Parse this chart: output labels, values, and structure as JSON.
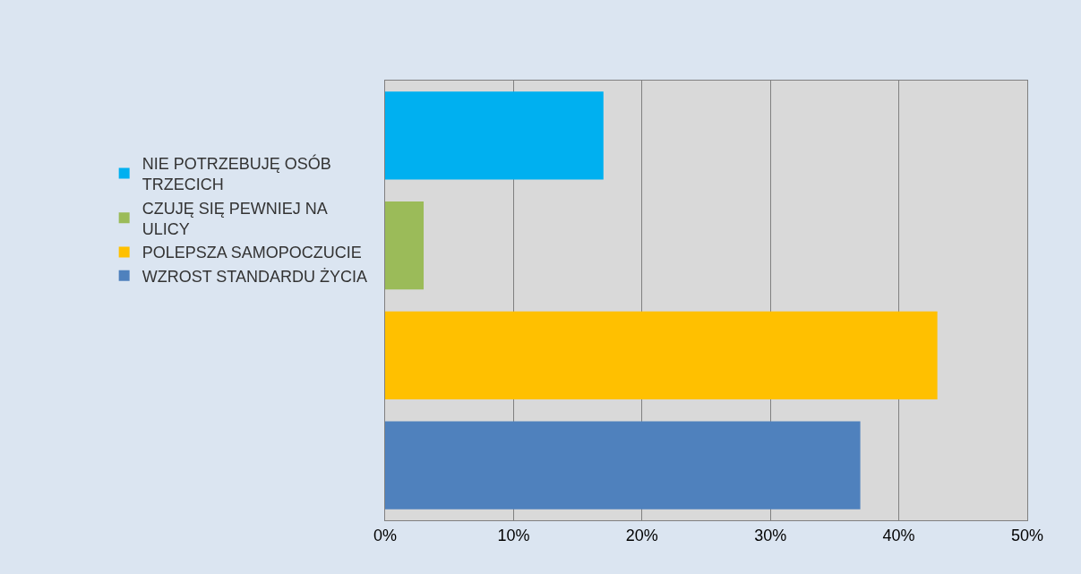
{
  "chart_data": {
    "type": "bar",
    "orientation": "horizontal",
    "categories": [
      null,
      null,
      null,
      null
    ],
    "series": [
      {
        "name": "NIE POTRZEBUJĘ OSÓB\nTRZECICH",
        "color": "#00b0f0",
        "values": [
          17,
          null,
          null,
          null
        ]
      },
      {
        "name": "CZUJĘ SIĘ PEWNIEJ NA\nULICY",
        "color": "#9bbb59",
        "values": [
          null,
          3,
          null,
          null
        ]
      },
      {
        "name": "POLEPSZA SAMOPOCZUCIE",
        "color": "#ffc000",
        "values": [
          null,
          null,
          43,
          null
        ]
      },
      {
        "name": "WZROST STANDARDU ŻYCIA",
        "color": "#4f81bd",
        "values": [
          null,
          null,
          null,
          37
        ]
      }
    ],
    "xlim": [
      0,
      50
    ],
    "xticks": [
      {
        "value": 0,
        "label": "0%"
      },
      {
        "value": 10,
        "label": "10%"
      },
      {
        "value": 20,
        "label": "20%"
      },
      {
        "value": 30,
        "label": "30%"
      },
      {
        "value": 40,
        "label": "40%"
      },
      {
        "value": 50,
        "label": "50%"
      }
    ],
    "grid": "x",
    "legend": "left"
  }
}
